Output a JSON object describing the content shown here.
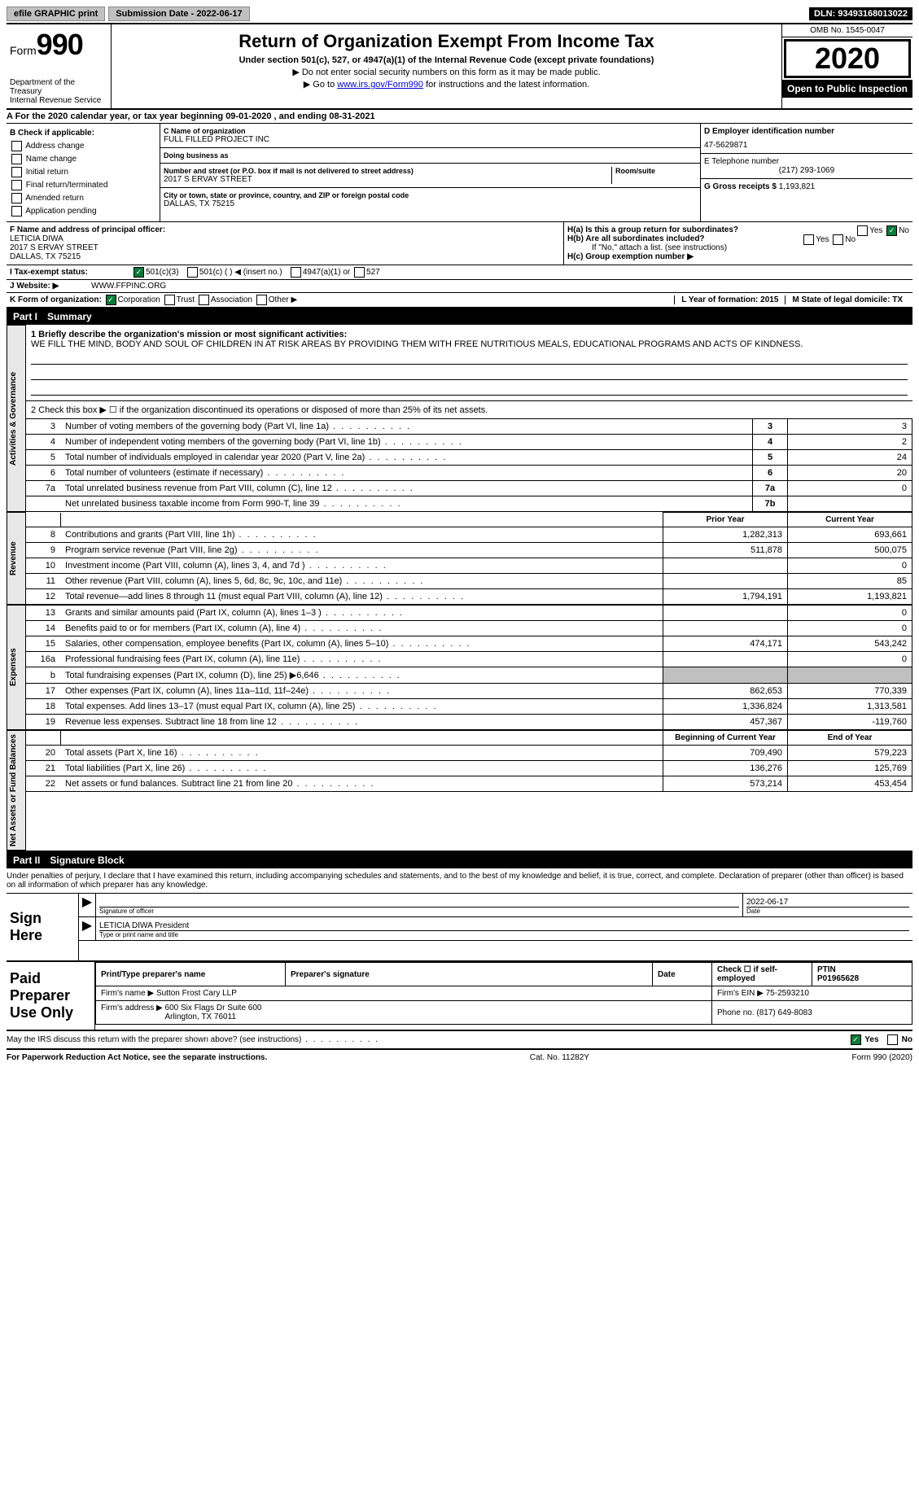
{
  "topbar": {
    "efile": "efile GRAPHIC print",
    "submission_label": "Submission Date - 2022-06-17",
    "dln": "DLN: 93493168013022"
  },
  "header": {
    "form_word": "Form",
    "form_num": "990",
    "dept": "Department of the Treasury\nInternal Revenue Service",
    "title": "Return of Organization Exempt From Income Tax",
    "subtitle": "Under section 501(c), 527, or 4947(a)(1) of the Internal Revenue Code (except private foundations)",
    "arrow1": "▶ Do not enter social security numbers on this form as it may be made public.",
    "arrow2_pre": "▶ Go to ",
    "arrow2_link": "www.irs.gov/Form990",
    "arrow2_post": " for instructions and the latest information.",
    "omb": "OMB No. 1545-0047",
    "year": "2020",
    "open": "Open to Public Inspection"
  },
  "line_a": "A For the 2020 calendar year, or tax year beginning 09-01-2020   , and ending 08-31-2021",
  "col_b": {
    "header": "B Check if applicable:",
    "items": [
      "Address change",
      "Name change",
      "Initial return",
      "Final return/terminated",
      "Amended return",
      "Application pending"
    ]
  },
  "col_c": {
    "name_label": "C Name of organization",
    "name": "FULL FILLED PROJECT INC",
    "dba_label": "Doing business as",
    "dba": "",
    "street_label": "Number and street (or P.O. box if mail is not delivered to street address)",
    "room_label": "Room/suite",
    "street": "2017 S ERVAY STREET",
    "city_label": "City or town, state or province, country, and ZIP or foreign postal code",
    "city": "DALLAS, TX  75215"
  },
  "col_d": {
    "ein_label": "D Employer identification number",
    "ein": "47-5629871",
    "phone_label": "E Telephone number",
    "phone": "(217) 293-1069",
    "gross_label": "G Gross receipts $",
    "gross": "1,193,821"
  },
  "principal": {
    "label": "F Name and address of principal officer:",
    "name": "LETICIA DIWA",
    "street": "2017 S ERVAY STREET",
    "city": "DALLAS, TX  75215"
  },
  "h_section": {
    "ha": "H(a)  Is this a group return for subordinates?",
    "ha_yes": "Yes",
    "ha_no": "No",
    "hb": "H(b)  Are all subordinates included?",
    "hb_note": "If \"No,\" attach a list. (see instructions)",
    "hc": "H(c)  Group exemption number ▶"
  },
  "line_i": {
    "label": "I   Tax-exempt status:",
    "opt1": "501(c)(3)",
    "opt2": "501(c) (  ) ◀ (insert no.)",
    "opt3": "4947(a)(1) or",
    "opt4": "527"
  },
  "line_j": {
    "label": "J   Website: ▶",
    "value": "WWW.FFPINC.ORG"
  },
  "line_k": {
    "label": "K Form of organization:",
    "corp": "Corporation",
    "trust": "Trust",
    "assoc": "Association",
    "other": "Other ▶"
  },
  "line_lm": {
    "l": "L Year of formation: 2015",
    "m": "M State of legal domicile: TX"
  },
  "part1": {
    "label": "Part I",
    "title": "Summary"
  },
  "mission": {
    "q1": "1  Briefly describe the organization's mission or most significant activities:",
    "text": "WE FILL THE MIND, BODY AND SOUL OF CHILDREN IN AT RISK AREAS BY PROVIDING THEM WITH FREE NUTRITIOUS MEALS, EDUCATIONAL PROGRAMS AND ACTS OF KINDNESS."
  },
  "governance": {
    "q2": "2    Check this box ▶ ☐  if the organization discontinued its operations or disposed of more than 25% of its net assets.",
    "rows": [
      {
        "n": "3",
        "desc": "Number of voting members of the governing body (Part VI, line 1a)",
        "box": "3",
        "val": "3"
      },
      {
        "n": "4",
        "desc": "Number of independent voting members of the governing body (Part VI, line 1b)",
        "box": "4",
        "val": "2"
      },
      {
        "n": "5",
        "desc": "Total number of individuals employed in calendar year 2020 (Part V, line 2a)",
        "box": "5",
        "val": "24"
      },
      {
        "n": "6",
        "desc": "Total number of volunteers (estimate if necessary)",
        "box": "6",
        "val": "20"
      },
      {
        "n": "7a",
        "desc": "Total unrelated business revenue from Part VIII, column (C), line 12",
        "box": "7a",
        "val": "0"
      },
      {
        "n": "",
        "desc": "Net unrelated business taxable income from Form 990-T, line 39",
        "box": "7b",
        "val": ""
      }
    ]
  },
  "two_col_header": {
    "prior": "Prior Year",
    "current": "Current Year"
  },
  "revenue": [
    {
      "n": "8",
      "desc": "Contributions and grants (Part VIII, line 1h)",
      "prior": "1,282,313",
      "current": "693,661"
    },
    {
      "n": "9",
      "desc": "Program service revenue (Part VIII, line 2g)",
      "prior": "511,878",
      "current": "500,075"
    },
    {
      "n": "10",
      "desc": "Investment income (Part VIII, column (A), lines 3, 4, and 7d )",
      "prior": "",
      "current": "0"
    },
    {
      "n": "11",
      "desc": "Other revenue (Part VIII, column (A), lines 5, 6d, 8c, 9c, 10c, and 11e)",
      "prior": "",
      "current": "85"
    },
    {
      "n": "12",
      "desc": "Total revenue—add lines 8 through 11 (must equal Part VIII, column (A), line 12)",
      "prior": "1,794,191",
      "current": "1,193,821"
    }
  ],
  "expenses": [
    {
      "n": "13",
      "desc": "Grants and similar amounts paid (Part IX, column (A), lines 1–3 )",
      "prior": "",
      "current": "0"
    },
    {
      "n": "14",
      "desc": "Benefits paid to or for members (Part IX, column (A), line 4)",
      "prior": "",
      "current": "0"
    },
    {
      "n": "15",
      "desc": "Salaries, other compensation, employee benefits (Part IX, column (A), lines 5–10)",
      "prior": "474,171",
      "current": "543,242"
    },
    {
      "n": "16a",
      "desc": "Professional fundraising fees (Part IX, column (A), line 11e)",
      "prior": "",
      "current": "0"
    },
    {
      "n": "b",
      "desc": "Total fundraising expenses (Part IX, column (D), line 25) ▶6,646",
      "prior": "SHADE",
      "current": "SHADE"
    },
    {
      "n": "17",
      "desc": "Other expenses (Part IX, column (A), lines 11a–11d, 11f–24e)",
      "prior": "862,653",
      "current": "770,339"
    },
    {
      "n": "18",
      "desc": "Total expenses. Add lines 13–17 (must equal Part IX, column (A), line 25)",
      "prior": "1,336,824",
      "current": "1,313,581"
    },
    {
      "n": "19",
      "desc": "Revenue less expenses. Subtract line 18 from line 12",
      "prior": "457,367",
      "current": "-119,760"
    }
  ],
  "net_header": {
    "begin": "Beginning of Current Year",
    "end": "End of Year"
  },
  "net": [
    {
      "n": "20",
      "desc": "Total assets (Part X, line 16)",
      "prior": "709,490",
      "current": "579,223"
    },
    {
      "n": "21",
      "desc": "Total liabilities (Part X, line 26)",
      "prior": "136,276",
      "current": "125,769"
    },
    {
      "n": "22",
      "desc": "Net assets or fund balances. Subtract line 21 from line 20",
      "prior": "573,214",
      "current": "453,454"
    }
  ],
  "vtabs": {
    "gov": "Activities & Governance",
    "rev": "Revenue",
    "exp": "Expenses",
    "net": "Net Assets or Fund Balances"
  },
  "part2": {
    "label": "Part II",
    "title": "Signature Block"
  },
  "penalties": "Under penalties of perjury, I declare that I have examined this return, including accompanying schedules and statements, and to the best of my knowledge and belief, it is true, correct, and complete. Declaration of preparer (other than officer) is based on all information of which preparer has any knowledge.",
  "sign": {
    "label": "Sign Here",
    "sig_label": "Signature of officer",
    "date": "2022-06-17",
    "date_label": "Date",
    "name": "LETICIA DIWA  President",
    "name_label": "Type or print name and title"
  },
  "prep": {
    "label": "Paid Preparer Use Only",
    "h1": "Print/Type preparer's name",
    "h2": "Preparer's signature",
    "h3": "Date",
    "h4_pre": "Check ☐ if self-employed",
    "h5": "PTIN",
    "ptin": "P01965628",
    "firm_name_label": "Firm's name    ▶",
    "firm_name": "Sutton Frost Cary LLP",
    "firm_ein_label": "Firm's EIN ▶",
    "firm_ein": "75-2593210",
    "firm_addr_label": "Firm's address ▶",
    "firm_addr": "600 Six Flags Dr Suite 600\nArlington, TX  76011",
    "phone_label": "Phone no.",
    "phone": "(817) 649-8083"
  },
  "discuss": {
    "q": "May the IRS discuss this return with the preparer shown above? (see instructions)",
    "yes": "Yes",
    "no": "No"
  },
  "footer": {
    "left": "For Paperwork Reduction Act Notice, see the separate instructions.",
    "mid": "Cat. No. 11282Y",
    "right": "Form 990 (2020)"
  }
}
